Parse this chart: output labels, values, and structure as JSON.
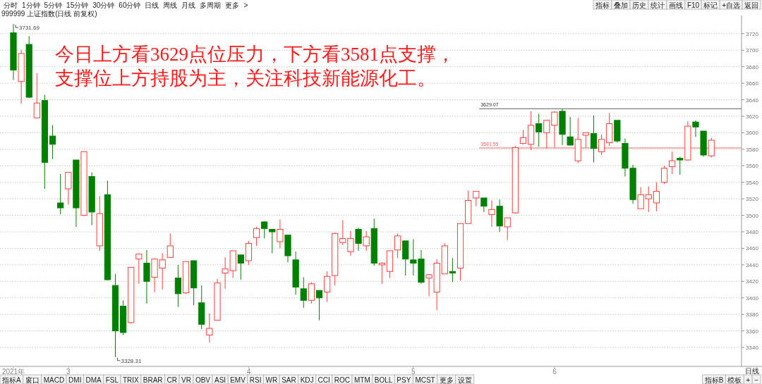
{
  "chart_data": {
    "type": "candlestick",
    "title": "999999 上证指数(日线 前复权)",
    "categories": [
      "2021年",
      null,
      null,
      null,
      null,
      null,
      null,
      "3",
      null,
      null,
      null,
      null,
      null,
      null,
      null,
      null,
      null,
      null,
      null,
      null,
      null,
      null,
      null,
      null,
      null,
      null,
      null,
      null,
      null,
      null,
      "4",
      null,
      null,
      null,
      null,
      null,
      null,
      null,
      null,
      null,
      null,
      null,
      null,
      null,
      null,
      null,
      null,
      null,
      null,
      null,
      null,
      "5",
      null,
      null,
      null,
      null,
      null,
      null,
      null,
      null,
      null,
      null,
      null,
      null,
      null,
      null,
      null,
      null,
      null,
      "6",
      null,
      null,
      null,
      null,
      null,
      null,
      null,
      null,
      null,
      null,
      null,
      null,
      null,
      null,
      null,
      null,
      null,
      null,
      null,
      null
    ],
    "ohlc": [
      [
        3721,
        3731.69,
        3664,
        3676
      ],
      [
        3662,
        3700,
        3635,
        3696
      ],
      [
        3707,
        3717,
        3642,
        3643
      ],
      [
        3618,
        3672,
        3617,
        3636
      ],
      [
        3639,
        3646,
        3532,
        3564
      ],
      [
        3596,
        3609,
        3568,
        3586
      ],
      [
        3515,
        3550,
        3501,
        3509
      ],
      [
        3532,
        3552,
        3513,
        3552
      ],
      [
        3567,
        3567,
        3486,
        3509
      ],
      [
        3500,
        3577,
        3499,
        3577
      ],
      [
        3547,
        3552,
        3488,
        3504
      ],
      [
        3463,
        3523,
        3457,
        3502
      ],
      [
        3525,
        3542,
        3421,
        3422
      ],
      [
        3415,
        3429,
        3328.31,
        3360
      ],
      [
        3390,
        3397,
        3355,
        3358
      ],
      [
        3370,
        3437,
        3369,
        3437
      ],
      [
        3447,
        3454,
        3417,
        3453
      ],
      [
        3442,
        3458,
        3393,
        3420
      ],
      [
        3425,
        3448,
        3407,
        3447
      ],
      [
        3436,
        3454,
        3410,
        3446
      ],
      [
        3449,
        3478,
        3449,
        3463
      ],
      [
        3424,
        3440,
        3389,
        3405
      ],
      [
        3406,
        3444,
        3405,
        3444
      ],
      [
        3445,
        3445,
        3391,
        3412
      ],
      [
        3394,
        3415,
        3362,
        3368
      ],
      [
        3355,
        3381,
        3346,
        3363
      ],
      [
        3373,
        3423,
        3373,
        3418
      ],
      [
        3430,
        3449,
        3411,
        3435
      ],
      [
        3433,
        3457,
        3424,
        3457
      ],
      [
        3452,
        3452,
        3422,
        3442
      ],
      [
        3445,
        3469,
        3440,
        3466
      ],
      [
        3473,
        3486,
        3463,
        3484
      ],
      [
        3492,
        3493,
        3472,
        3484
      ],
      [
        3483,
        3483,
        3454,
        3480
      ],
      [
        3468,
        3495,
        3460,
        3483
      ],
      [
        3476,
        3476,
        3443,
        3451
      ],
      [
        3446,
        3456,
        3404,
        3413
      ],
      [
        3411,
        3425,
        3388,
        3397
      ],
      [
        3397,
        3419,
        3393,
        3417
      ],
      [
        3409,
        3409,
        3373,
        3400
      ],
      [
        3407,
        3432,
        3395,
        3426
      ],
      [
        3427,
        3479,
        3415,
        3478
      ],
      [
        3467,
        3494,
        3464,
        3472
      ],
      [
        3456,
        3481,
        3451,
        3472
      ],
      [
        3483,
        3485,
        3457,
        3466
      ],
      [
        3463,
        3481,
        3457,
        3474
      ],
      [
        3484,
        3496,
        3439,
        3442
      ],
      [
        3440,
        3443,
        3417,
        3442
      ],
      [
        3432,
        3457,
        3424,
        3457
      ],
      [
        3458,
        3478,
        3448,
        3475
      ],
      [
        3469,
        3469,
        3427,
        3447
      ],
      [
        3446,
        3471,
        3427,
        3442
      ],
      [
        3447,
        3458,
        3417,
        3419
      ],
      [
        3424,
        3429,
        3402,
        3428
      ],
      [
        3407,
        3447,
        3385,
        3442
      ],
      [
        3429,
        3466,
        3429,
        3463
      ],
      [
        3432,
        3448,
        3419,
        3430
      ],
      [
        3436,
        3490,
        3421,
        3490
      ],
      [
        3490,
        3530,
        3490,
        3518
      ],
      [
        3521,
        3529,
        3511,
        3529
      ],
      [
        3521,
        3521,
        3504,
        3511
      ],
      [
        3501,
        3518,
        3486,
        3507
      ],
      [
        3511,
        3519,
        3480,
        3487
      ],
      [
        3486,
        3497,
        3470,
        3497
      ],
      [
        3503,
        3584,
        3502,
        3582
      ],
      [
        3587,
        3603,
        3586,
        3594
      ],
      [
        3586,
        3626,
        3579,
        3609
      ],
      [
        3611,
        3623,
        3583,
        3601
      ],
      [
        3600,
        3615,
        3581,
        3615
      ],
      [
        3609,
        3626,
        3582,
        3625
      ],
      [
        3626,
        3629.07,
        3585,
        3598
      ],
      [
        3595,
        3619,
        3585,
        3585
      ],
      [
        3566,
        3618,
        3563,
        3592
      ],
      [
        3597,
        3600,
        3582,
        3600
      ],
      [
        3599,
        3621,
        3564,
        3581
      ],
      [
        3577,
        3598,
        3573,
        3592
      ],
      [
        3588,
        3624,
        3584,
        3611
      ],
      [
        3615,
        3615,
        3588,
        3590
      ],
      [
        3587,
        3593,
        3547,
        3557
      ],
      [
        3557,
        3561,
        3514,
        3519
      ],
      [
        3508,
        3534,
        3508,
        3525
      ],
      [
        3520,
        3535,
        3504,
        3525
      ],
      [
        3515,
        3540,
        3505,
        3529
      ],
      [
        3540,
        3560,
        3538,
        3557
      ],
      [
        3559,
        3577,
        3550,
        3566
      ],
      [
        3569,
        3571,
        3549,
        3567
      ],
      [
        3567,
        3614,
        3566,
        3608
      ],
      [
        3613,
        3615,
        3595,
        3607
      ],
      [
        3602,
        3602,
        3571,
        3573
      ],
      [
        3572,
        3594,
        3570,
        3591
      ]
    ],
    "ylim": [
      3317,
      3742
    ],
    "yticks": [
      3340,
      3360,
      3380,
      3400,
      3420,
      3440,
      3460,
      3480,
      3500,
      3520,
      3540,
      3560,
      3580,
      3600,
      3620,
      3640,
      3660,
      3680,
      3700,
      3720
    ],
    "grid": "y",
    "ref_lines": [
      {
        "axis": "y",
        "value": 3629.07,
        "label": "3629.07",
        "color": "#808080"
      },
      {
        "axis": "y",
        "value": 3581.55,
        "label": "3581.55",
        "color": "#ff6666"
      }
    ],
    "annotations": [
      "3731.69",
      "3328.31",
      "今日上方看3629点位压力，下方看3581点支撑，",
      "支撑位上方持股为主，关注科技新能源化工。",
      "分时 1分钟 5分钟 15分钟 30分钟 60分钟 日线 周线 月线 多周期 更多 >",
      "指标 叠加 历史 统计 画线 F10 标记 +自选 返回",
      "指标A 窗口 MACD DMI DMA FSL TRIX BRAR CR VR OBV ASI EMV RSI WR SAR KDJ CCI ROC MTM BOLL PSY MCST 更多 设置",
      "指标B 模板 + −",
      "日线"
    ]
  }
}
